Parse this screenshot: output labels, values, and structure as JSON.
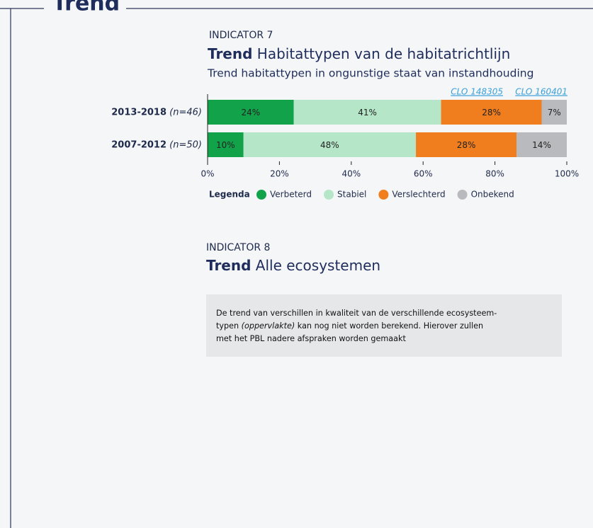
{
  "section": {
    "title": "Trend"
  },
  "indicator7": {
    "label": "INDICATOR 7",
    "title_bold": "Trend",
    "title": "Habitattypen van de habitatrichtlijn",
    "links": [
      "CLO 148305",
      "CLO 160401"
    ]
  },
  "chart_data": {
    "type": "bar",
    "orientation": "horizontal",
    "stacked": true,
    "subtitle": "Trend habitattypen in ongunstige staat van instandhouding",
    "categories": [
      "2013-2018",
      "2007-2012"
    ],
    "category_notes": [
      "(n=46)",
      "(n=50)"
    ],
    "series": [
      {
        "name": "Verbeterd",
        "color": "#12a24a",
        "values": [
          24,
          10
        ],
        "value_labels": [
          "24%",
          "10%"
        ]
      },
      {
        "name": "Stabiel",
        "color": "#b5e6c8",
        "values": [
          41,
          48
        ],
        "value_labels": [
          "41%",
          "48%"
        ]
      },
      {
        "name": "Verslechterd",
        "color": "#f07d1e",
        "values": [
          28,
          28
        ],
        "value_labels": [
          "28%",
          "28%"
        ]
      },
      {
        "name": "Onbekend",
        "color": "#b8babd",
        "values": [
          7,
          14
        ],
        "value_labels": [
          "7%",
          "14%"
        ]
      }
    ],
    "xlim": [
      0,
      100
    ],
    "xticks": [
      {
        "value": 0,
        "label": "0%"
      },
      {
        "value": 20,
        "label": "20%"
      },
      {
        "value": 40,
        "label": "40%"
      },
      {
        "value": 60,
        "label": "60%"
      },
      {
        "value": 80,
        "label": "80%"
      },
      {
        "value": 100,
        "label": "100%"
      }
    ],
    "legend_title": "Legenda"
  },
  "indicator8": {
    "label": "INDICATOR 8",
    "title_bold": "Trend",
    "title": "Alle ecosystemen",
    "note": {
      "line1": "De trend van verschillen in kwaliteit van de verschillende ecosysteem-",
      "line2": [
        "typen ",
        "(oppervlakte)",
        " kan nog niet worden berekend. Hierover zullen"
      ],
      "line3": "met het PBL nadere afspraken worden gemaakt"
    }
  }
}
